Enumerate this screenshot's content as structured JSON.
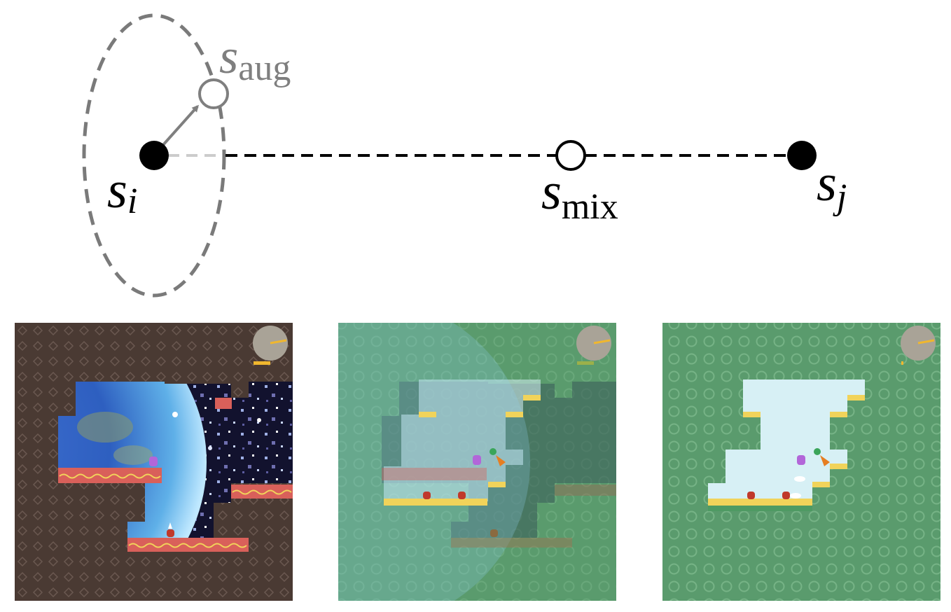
{
  "labels": {
    "s_i": {
      "base": "s",
      "sub": "i"
    },
    "s_aug": {
      "base": "s",
      "sub": "aug"
    },
    "s_mix": {
      "base": "s",
      "sub": "mix"
    },
    "s_j": {
      "base": "s",
      "sub": "j"
    }
  },
  "colors": {
    "ink": "#000000",
    "aug_gray": "#7f7f7f",
    "ellipse_gray": "#7a7a7a",
    "short_dash": "#cccccc",
    "brown_bg": "#4a3a33",
    "green_bg": "#5a9b6d",
    "coral_platform": "#d9605a",
    "yellow_grass": "#f1d35a",
    "sky_light": "#d7f0f5"
  },
  "panels": [
    {
      "name": "panel-state-i",
      "theme": "space"
    },
    {
      "name": "panel-state-mix",
      "theme": "blend"
    },
    {
      "name": "panel-state-j",
      "theme": "grass"
    }
  ]
}
